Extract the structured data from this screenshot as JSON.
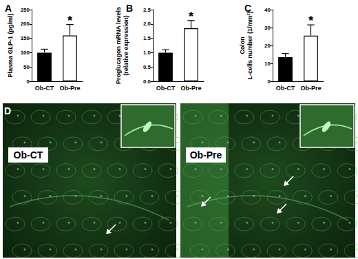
{
  "chart_data": [
    {
      "type": "bar",
      "title": "A",
      "ylabel": "Plasma GLP-1 (pg/ml)",
      "categories": [
        "Ob-CT",
        "Ob-Pre"
      ],
      "values": [
        100,
        160
      ],
      "errors": [
        12,
        38
      ],
      "colors": [
        "#000000",
        "#ffffff"
      ],
      "ylim": [
        0,
        250
      ],
      "yticks": [
        0,
        50,
        100,
        150,
        200,
        250
      ],
      "grid": false,
      "annotations": [
        {
          "text": "*",
          "category": "Ob-Pre"
        }
      ]
    },
    {
      "type": "bar",
      "title": "B",
      "ylabel": "Proglucagon mRNA levels\n(relative expression)",
      "categories": [
        "Ob-CT",
        "Ob-Pre"
      ],
      "values": [
        1.0,
        1.85
      ],
      "errors": [
        0.1,
        0.27
      ],
      "colors": [
        "#000000",
        "#ffffff"
      ],
      "ylim": [
        0,
        2.5
      ],
      "yticks": [
        {
          "value": 0,
          "label": "0.0"
        },
        {
          "value": 0.5,
          "label": "0.5"
        },
        {
          "value": 1,
          "label": "1.0"
        },
        {
          "value": 1.5,
          "label": "1.5"
        },
        {
          "value": 2,
          "label": "2.0"
        },
        {
          "value": 2.5,
          "label": "2.5"
        }
      ],
      "grid": false,
      "annotations": [
        {
          "text": "*",
          "category": "Ob-Pre"
        }
      ]
    },
    {
      "type": "bar",
      "title": "C",
      "ylabel": "Colon\nL-cells number (1/mm²)",
      "categories": [
        "Ob-CT",
        "Ob-Pre"
      ],
      "values": [
        13.5,
        25.5
      ],
      "errors": [
        2,
        6
      ],
      "colors": [
        "#000000",
        "#ffffff"
      ],
      "ylim": [
        0,
        40
      ],
      "yticks": [
        0,
        10,
        20,
        30,
        40
      ],
      "grid": false,
      "annotations": [
        {
          "text": "*",
          "category": "Ob-Pre"
        }
      ]
    }
  ],
  "panel_d": {
    "label": "D",
    "images": [
      {
        "label": "Ob-CT"
      },
      {
        "label": "Ob-Pre"
      }
    ]
  }
}
